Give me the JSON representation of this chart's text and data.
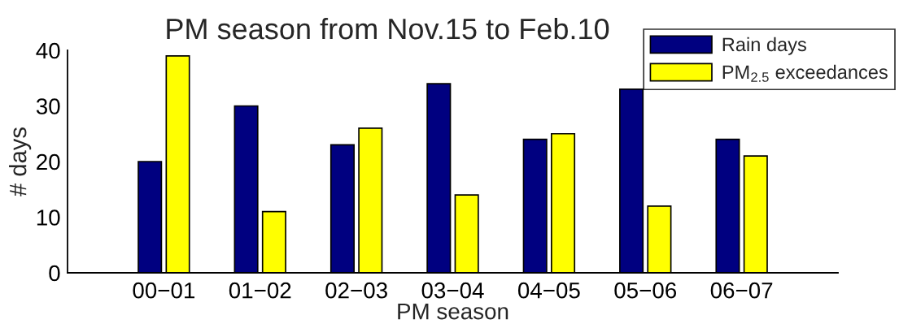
{
  "chart_data": {
    "type": "bar",
    "title": "PM season from Nov.15 to Feb.10",
    "xlabel": "PM season",
    "ylabel": "# days",
    "categories": [
      "00−01",
      "01−02",
      "02−03",
      "03−04",
      "04−05",
      "05−06",
      "06−07"
    ],
    "series": [
      {
        "name": "Rain days",
        "color": "#000080",
        "values": [
          20,
          30,
          23,
          34,
          24,
          33,
          24
        ]
      },
      {
        "name": "PM$_{2.5}$ exceedances",
        "color": "#ffff00",
        "values": [
          39,
          11,
          26,
          14,
          25,
          12,
          21
        ]
      }
    ],
    "ylim": [
      0,
      40
    ],
    "yticks": [
      0,
      10,
      20,
      30,
      40
    ],
    "grid": false,
    "legend": "top right"
  }
}
